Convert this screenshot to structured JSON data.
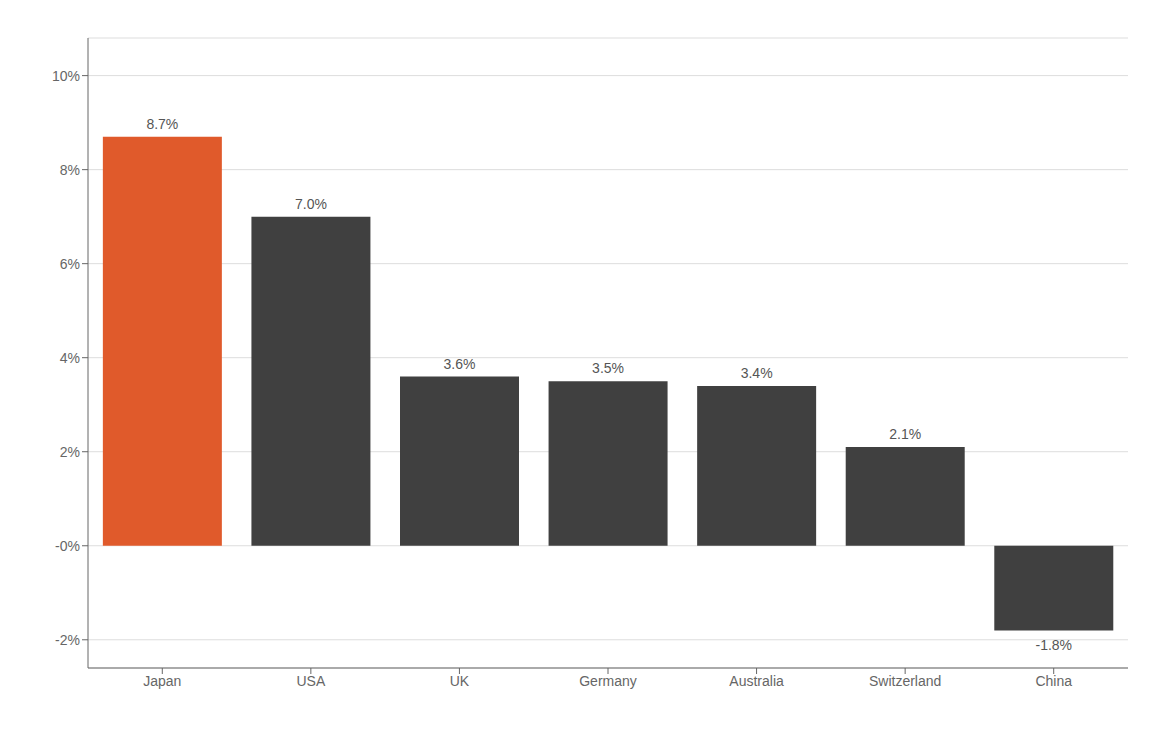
{
  "chart_data": {
    "type": "bar",
    "categories": [
      "Japan",
      "USA",
      "UK",
      "Germany",
      "Australia",
      "Switzerland",
      "China"
    ],
    "values": [
      8.7,
      7.0,
      3.6,
      3.5,
      3.4,
      2.1,
      -1.8
    ],
    "value_labels": [
      "8.7%",
      "7.0%",
      "3.6%",
      "3.5%",
      "3.4%",
      "2.1%",
      "-1.8%"
    ],
    "data_labels": true,
    "colors": [
      "#e05a2b",
      "#404040",
      "#404040",
      "#404040",
      "#404040",
      "#404040",
      "#404040"
    ],
    "ylim": [
      -2.6,
      10.8
    ],
    "yticks": [
      {
        "value": -2,
        "label": "-2%"
      },
      {
        "value": 0,
        "label": "-0%"
      },
      {
        "value": 2,
        "label": "2%"
      },
      {
        "value": 4,
        "label": "4%"
      },
      {
        "value": 6,
        "label": "6%"
      },
      {
        "value": 8,
        "label": "8%"
      },
      {
        "value": 10,
        "label": "10%"
      }
    ],
    "grid": true
  }
}
